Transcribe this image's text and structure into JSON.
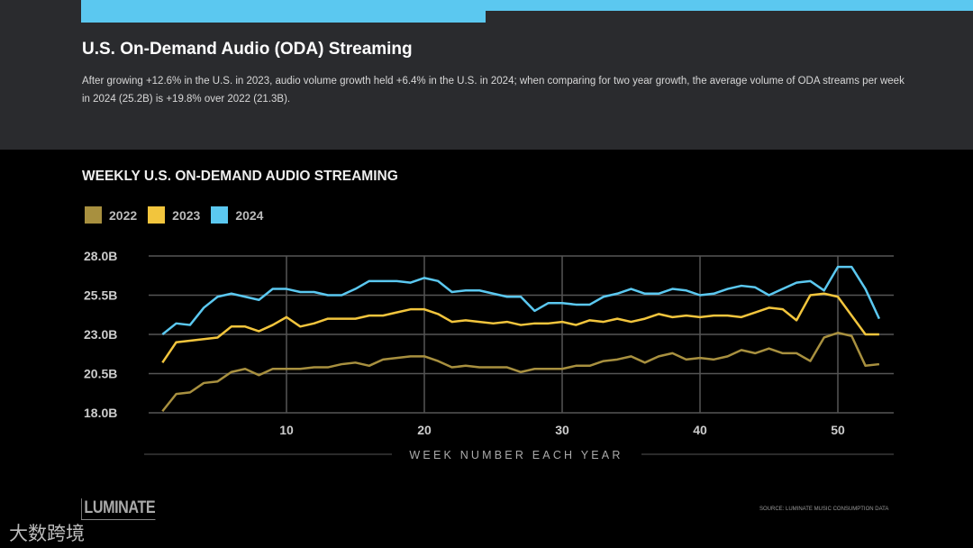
{
  "header": {
    "title": "U.S. On-Demand Audio (ODA) Streaming",
    "description": "After growing +12.6% in the U.S. in 2023, audio volume growth held +6.4% in the U.S. in 2024; when comparing for two year growth, the average volume of ODA streams per week in 2024 (25.2B) is +19.8% over 2022 (21.3B)."
  },
  "footer": {
    "logo": "LUMINATE",
    "source": "SOURCE: LUMINATE MUSIC CONSUMPTION DATA",
    "watermark": "大数跨境"
  },
  "colors": {
    "accent": "#5bc8f0",
    "2022": "#a8903f",
    "2023": "#f2c53d",
    "2024": "#5bc8f0"
  },
  "chart_data": {
    "type": "line",
    "title": "WEEKLY U.S. ON-DEMAND AUDIO STREAMING",
    "xlabel": "WEEK NUMBER EACH YEAR",
    "ylabel": "",
    "xlim": [
      1,
      53
    ],
    "ylim": [
      18,
      28
    ],
    "xticks": [
      {
        "v": 10,
        "label": "10"
      },
      {
        "v": 20,
        "label": "20"
      },
      {
        "v": 30,
        "label": "30"
      },
      {
        "v": 40,
        "label": "40"
      },
      {
        "v": 50,
        "label": "50"
      }
    ],
    "yticks": [
      {
        "v": 28,
        "label": "28.0B"
      },
      {
        "v": 25.5,
        "label": "25.5B"
      },
      {
        "v": 23,
        "label": "23.0B"
      },
      {
        "v": 20.5,
        "label": "20.5B"
      },
      {
        "v": 18,
        "label": "18.0B"
      }
    ],
    "grid": true,
    "legend": "top-left",
    "series": [
      {
        "name": "2022",
        "color": "#a8903f",
        "values": [
          18.1,
          19.2,
          19.3,
          19.9,
          20.0,
          20.6,
          20.8,
          20.4,
          20.8,
          20.8,
          20.8,
          20.9,
          20.9,
          21.1,
          21.2,
          21.0,
          21.4,
          21.5,
          21.6,
          21.6,
          21.3,
          20.9,
          21.0,
          20.9,
          20.9,
          20.9,
          20.6,
          20.8,
          20.8,
          20.8,
          21.0,
          21.0,
          21.3,
          21.4,
          21.6,
          21.2,
          21.6,
          21.8,
          21.4,
          21.5,
          21.4,
          21.6,
          22.0,
          21.8,
          22.1,
          21.8,
          21.8,
          21.3,
          22.8,
          23.1,
          22.9,
          21.0,
          21.1
        ]
      },
      {
        "name": "2023",
        "color": "#f2c53d",
        "values": [
          21.2,
          22.5,
          22.6,
          22.7,
          22.8,
          23.5,
          23.5,
          23.2,
          23.6,
          24.1,
          23.5,
          23.7,
          24.0,
          24.0,
          24.0,
          24.2,
          24.2,
          24.4,
          24.6,
          24.6,
          24.3,
          23.8,
          23.9,
          23.8,
          23.7,
          23.8,
          23.6,
          23.7,
          23.7,
          23.8,
          23.6,
          23.9,
          23.8,
          24.0,
          23.8,
          24.0,
          24.3,
          24.1,
          24.2,
          24.1,
          24.2,
          24.2,
          24.1,
          24.4,
          24.7,
          24.6,
          23.9,
          25.5,
          25.6,
          25.4,
          24.2,
          23.0,
          23.0
        ]
      },
      {
        "name": "2024",
        "color": "#5bc8f0",
        "values": [
          23.0,
          23.7,
          23.6,
          24.7,
          25.4,
          25.6,
          25.4,
          25.2,
          25.9,
          25.9,
          25.7,
          25.7,
          25.5,
          25.5,
          25.9,
          26.4,
          26.4,
          26.4,
          26.3,
          26.6,
          26.4,
          25.7,
          25.8,
          25.8,
          25.6,
          25.4,
          25.4,
          24.5,
          25.0,
          25.0,
          24.9,
          24.9,
          25.4,
          25.6,
          25.9,
          25.6,
          25.6,
          25.9,
          25.8,
          25.5,
          25.6,
          25.9,
          26.1,
          26.0,
          25.5,
          25.9,
          26.3,
          26.4,
          25.8,
          27.3,
          27.3,
          25.9,
          24.0
        ]
      }
    ]
  }
}
